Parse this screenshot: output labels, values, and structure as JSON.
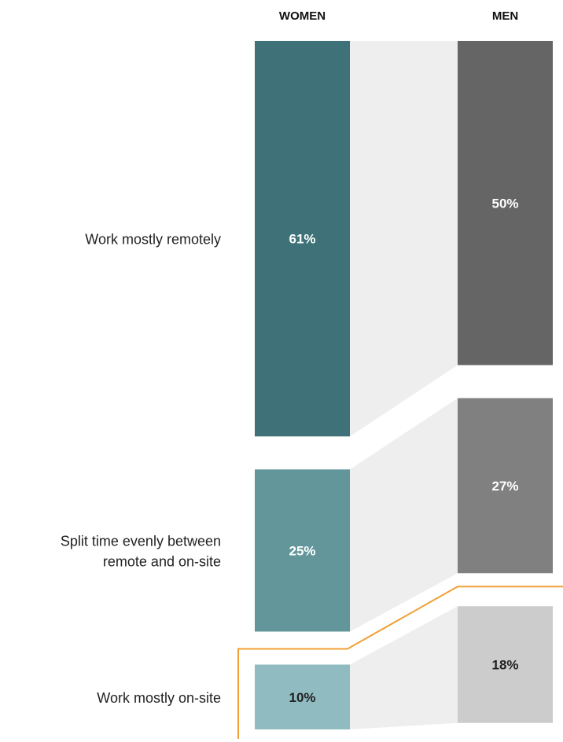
{
  "chart_data": {
    "type": "bar",
    "subtype": "stacked-slope-comparison",
    "categories": [
      "Work mostly remotely",
      "Split time evenly between remote and on-site",
      "Work mostly on-site"
    ],
    "category_lines": [
      [
        "Work mostly remotely"
      ],
      [
        "Split time evenly between",
        "remote and on-site"
      ],
      [
        "Work mostly on-site"
      ]
    ],
    "unit": "%",
    "series": [
      {
        "name": "WOMEN",
        "values": [
          61,
          25,
          10
        ],
        "labels": [
          "61%",
          "25%",
          "10%"
        ],
        "colors": [
          "#3e7278",
          "#63969b",
          "#90bcc1"
        ],
        "text_colors": [
          "#ffffff",
          "#ffffff",
          "#222222"
        ]
      },
      {
        "name": "MEN",
        "values": [
          50,
          27,
          18
        ],
        "labels": [
          "50%",
          "27%",
          "18%"
        ],
        "colors": [
          "#656565",
          "#808080",
          "#cccccc"
        ],
        "text_colors": [
          "#ffffff",
          "#ffffff",
          "#222222"
        ]
      }
    ],
    "connector_color": "#eeeeee",
    "highlight": {
      "category": "Work mostly on-site",
      "color": "#f0a035"
    },
    "legend": "column headers at top",
    "grid": false
  }
}
